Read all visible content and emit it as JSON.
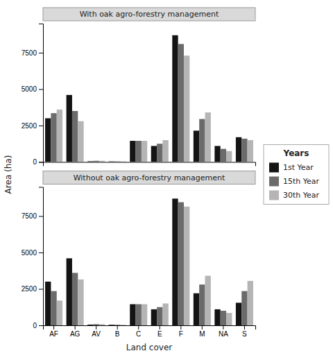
{
  "chart_data": [
    {
      "type": "bar",
      "title": "With oak agro-forestry management",
      "y_label": "Area (ha)",
      "legend_title": "Years",
      "legend": "right",
      "categories": [
        "AF",
        "AG",
        "AV",
        "B",
        "C",
        "E",
        "F",
        "M",
        "NA",
        "S"
      ],
      "series": [
        {
          "name": "1st Year",
          "color": "#141414",
          "values": [
            3000,
            4600,
            50,
            40,
            1450,
            1100,
            8700,
            2150,
            1100,
            1700
          ]
        },
        {
          "name": "15th Year",
          "color": "#6b6b6b",
          "values": [
            3350,
            3500,
            80,
            40,
            1450,
            1250,
            8100,
            2950,
            900,
            1600
          ]
        },
        {
          "name": "30th Year",
          "color": "#b5b5b5",
          "values": [
            3600,
            2800,
            80,
            40,
            1450,
            1500,
            7300,
            3400,
            750,
            1500
          ]
        }
      ],
      "ylim": [
        0,
        9500
      ],
      "yticks": [
        0,
        2500,
        5000,
        7500
      ],
      "grid": false,
      "tick_labels": "y"
    },
    {
      "type": "bar",
      "title": "Without oak agro-forestry management",
      "x_label": "Land cover",
      "categories": [
        "AF",
        "AG",
        "AV",
        "B",
        "C",
        "E",
        "F",
        "M",
        "NA",
        "S"
      ],
      "series": [
        {
          "name": "1st Year",
          "color": "#141414",
          "values": [
            3000,
            4600,
            50,
            40,
            1450,
            1100,
            8700,
            2200,
            1100,
            1550
          ]
        },
        {
          "name": "15th Year",
          "color": "#6b6b6b",
          "values": [
            2350,
            3600,
            80,
            40,
            1450,
            1250,
            8450,
            2800,
            1000,
            2350
          ]
        },
        {
          "name": "30th Year",
          "color": "#b5b5b5",
          "values": [
            1700,
            3150,
            80,
            40,
            1450,
            1500,
            8150,
            3400,
            850,
            3050
          ]
        }
      ],
      "ylim": [
        0,
        9500
      ],
      "yticks": [
        0,
        2500,
        5000,
        7500
      ],
      "grid": false
    }
  ]
}
